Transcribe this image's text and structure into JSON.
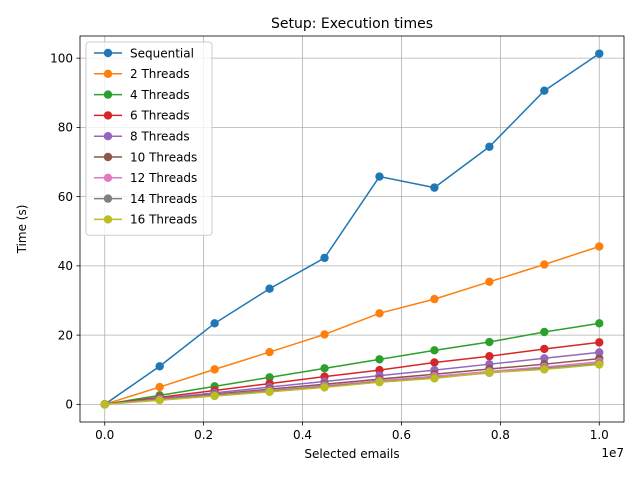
{
  "chart_data": {
    "type": "line",
    "title": "Setup: Execution times",
    "xlabel": "Selected emails",
    "ylabel": "Time (s)",
    "x_offset_label": "1e7",
    "x": [
      0,
      1111111,
      2222222,
      3333333,
      4444444,
      5555556,
      6666667,
      7777778,
      8888889,
      10000000
    ],
    "xlim": [
      -500000,
      10500000
    ],
    "ylim": [
      -5.1,
      106.4
    ],
    "x_ticks": [
      0,
      2000000,
      4000000,
      6000000,
      8000000,
      10000000
    ],
    "x_tick_labels": [
      "0.0",
      "0.2",
      "0.4",
      "0.6",
      "0.8",
      "1.0"
    ],
    "y_ticks": [
      0,
      20,
      40,
      60,
      80,
      100
    ],
    "y_tick_labels": [
      "0",
      "20",
      "40",
      "60",
      "80",
      "100"
    ],
    "grid": true,
    "legend_position": "top-left",
    "series": [
      {
        "name": "Sequential",
        "color": "#1f77b4",
        "values": [
          0,
          11.0,
          23.4,
          33.4,
          42.3,
          65.8,
          62.6,
          74.4,
          90.6,
          101.3
        ]
      },
      {
        "name": "2 Threads",
        "color": "#ff7f0e",
        "values": [
          0,
          5.0,
          10.1,
          15.1,
          20.2,
          26.3,
          30.4,
          35.4,
          40.4,
          45.6
        ]
      },
      {
        "name": "4 Threads",
        "color": "#2ca02c",
        "values": [
          0,
          2.6,
          5.2,
          7.8,
          10.4,
          13.0,
          15.6,
          18.0,
          20.9,
          23.4
        ]
      },
      {
        "name": "6 Threads",
        "color": "#d62728",
        "values": [
          0,
          2.0,
          4.0,
          6.0,
          8.0,
          9.9,
          12.1,
          13.9,
          16.0,
          17.9
        ]
      },
      {
        "name": "8 Threads",
        "color": "#9467bd",
        "values": [
          0,
          1.7,
          3.3,
          5.0,
          6.6,
          8.3,
          9.9,
          11.6,
          13.3,
          15.0
        ]
      },
      {
        "name": "10 Threads",
        "color": "#8c564b",
        "values": [
          0,
          1.5,
          2.9,
          4.4,
          5.8,
          7.3,
          8.7,
          10.2,
          11.6,
          13.2
        ]
      },
      {
        "name": "12 Threads",
        "color": "#e377c2",
        "values": [
          0,
          1.4,
          2.7,
          4.0,
          5.4,
          6.8,
          8.1,
          9.5,
          10.8,
          12.3
        ]
      },
      {
        "name": "14 Threads",
        "color": "#7f7f7f",
        "values": [
          0,
          1.3,
          2.6,
          3.8,
          5.1,
          6.5,
          7.7,
          9.1,
          10.4,
          11.8
        ]
      },
      {
        "name": "16 Threads",
        "color": "#bcbd22",
        "values": [
          0,
          1.2,
          2.4,
          3.6,
          4.9,
          6.4,
          7.5,
          9.2,
          10.1,
          11.5
        ]
      }
    ]
  }
}
